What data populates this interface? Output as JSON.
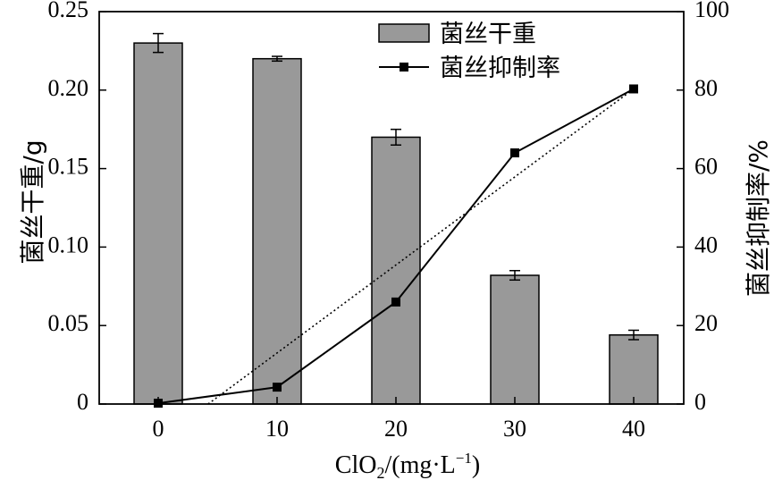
{
  "chart_data": {
    "type": "bar",
    "categories": [
      "0",
      "10",
      "20",
      "30",
      "40"
    ],
    "x": [
      0,
      10,
      20,
      30,
      40
    ],
    "series": [
      {
        "name": "菌丝干重",
        "type": "bar",
        "axis": "left",
        "values": [
          0.23,
          0.22,
          0.17,
          0.082,
          0.044
        ],
        "errors": [
          0.006,
          0.0015,
          0.005,
          0.003,
          0.003
        ],
        "color": "#999999"
      },
      {
        "name": "菌丝抑制率",
        "type": "line",
        "axis": "right",
        "values": [
          0.2,
          4.3,
          26.0,
          64.0,
          80.3
        ],
        "color": "#000000",
        "marker": "square"
      },
      {
        "type": "line",
        "axis": "right",
        "style": "dotted",
        "x": [
          4.2,
          40
        ],
        "values": [
          0,
          80.3
        ],
        "color": "#000000"
      }
    ],
    "ylabel_left": "菌丝干重/g",
    "ylabel_right": "菌丝抑制率/%",
    "xlabel_main": "ClO",
    "xlabel_sub": "2",
    "xlabel_mid": "/(mg·L",
    "xlabel_sup": "−1",
    "xlabel_end": ")",
    "ylim_left": [
      0,
      0.25
    ],
    "ylim_right": [
      0,
      100
    ],
    "yticks_left": [
      "0",
      "0.05",
      "0.10",
      "0.15",
      "0.20",
      "0.25"
    ],
    "yticks_right": [
      "0",
      "20",
      "40",
      "60",
      "80",
      "100"
    ],
    "xticks": [
      "0",
      "10",
      "20",
      "30",
      "40"
    ],
    "legend_position": "top-center",
    "grid": false
  }
}
